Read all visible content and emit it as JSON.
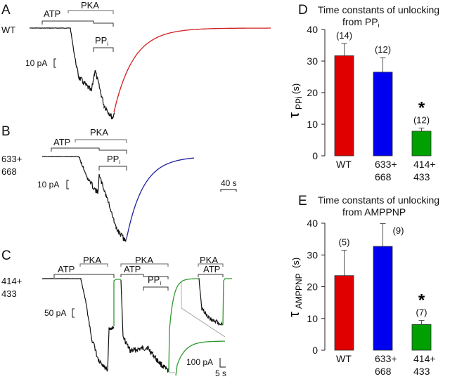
{
  "panels": {
    "A": {
      "letter": "A",
      "row_label": "WT",
      "scale": "10 pA",
      "fit_color": "#d02020",
      "bars": {
        "atp": "ATP",
        "pka": "PKA",
        "ppi": "PP",
        "ppi_sub": "i"
      }
    },
    "B": {
      "letter": "B",
      "row_label_1": "633+",
      "row_label_2": "668",
      "scale": "10 pA",
      "time_scale": "40 s",
      "fit_color": "#2020a0",
      "bars": {
        "atp": "ATP",
        "pka": "PKA",
        "ppi": "PP",
        "ppi_sub": "i"
      }
    },
    "C": {
      "letter": "C",
      "row_label_1": "414+",
      "row_label_2": "433",
      "scale": "50 pA",
      "fit_color": "#2e9a2e",
      "inset_scale_current": "100 pA",
      "inset_scale_time": "5 s",
      "bars": {
        "atp": "ATP",
        "pka": "PKA",
        "ppi": "PP",
        "ppi_sub": "i"
      }
    }
  },
  "chart_data": [
    {
      "panel": "D",
      "type": "bar",
      "title": "Time constants of unlocking",
      "title_line2": "from PP",
      "title_line2_sub": "i",
      "ylabel": "τ",
      "ylabel_sub": "PPi",
      "ylabel_unit": "(s)",
      "ylim": [
        0,
        40
      ],
      "yticks": [
        "0",
        "10",
        "20",
        "30",
        "40"
      ],
      "categories": [
        [
          "WT"
        ],
        [
          "633+",
          "668"
        ],
        [
          "414+",
          "433"
        ]
      ],
      "values": [
        31.7,
        26.5,
        7.8
      ],
      "errors": [
        3.9,
        4.6,
        1.0
      ],
      "n_labels": [
        "(14)",
        "(12)",
        "(12)"
      ],
      "significance": [
        "",
        "",
        "*"
      ],
      "colors": [
        "#e00000",
        "#0000f0",
        "#00a000"
      ]
    },
    {
      "panel": "E",
      "type": "bar",
      "title": "Time constants of unlocking",
      "title_line2": "from AMPPNP",
      "title_line2_sub": "",
      "ylabel": "τ",
      "ylabel_sub": "AMPPNP",
      "ylabel_unit": "(s)",
      "ylim": [
        0,
        40
      ],
      "yticks": [
        "0",
        "10",
        "20",
        "30",
        "40"
      ],
      "categories": [
        [
          "WT"
        ],
        [
          "633+",
          "668"
        ],
        [
          "414+",
          "433"
        ]
      ],
      "values": [
        23.5,
        32.7,
        8.1
      ],
      "errors": [
        8.0,
        7.2,
        1.3
      ],
      "n_labels": [
        "(5)",
        "(9)",
        "(7)"
      ],
      "significance": [
        "",
        "",
        "*"
      ],
      "colors": [
        "#e00000",
        "#0000f0",
        "#00a000"
      ]
    }
  ]
}
